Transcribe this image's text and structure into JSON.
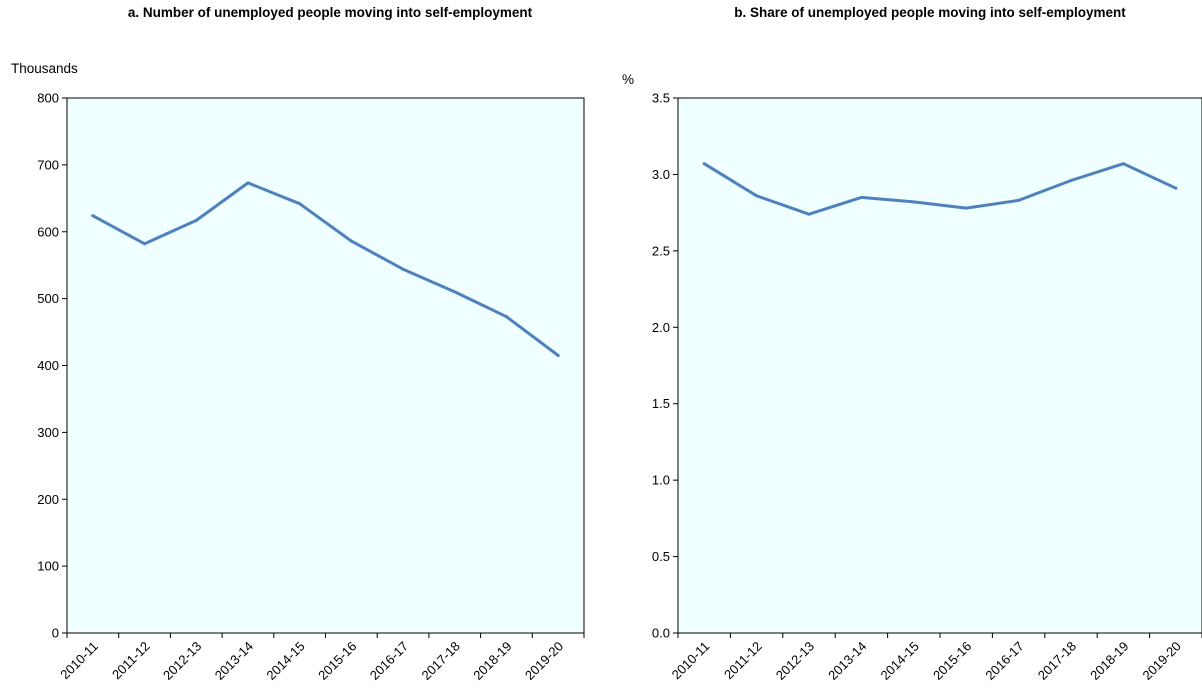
{
  "chart_data": [
    {
      "type": "line",
      "title": "a. Number of unemployed people moving into self-employment",
      "ylabel": "Thousands",
      "xlabel": "",
      "categories": [
        "2010-11",
        "2011-12",
        "2012-13",
        "2013-14",
        "2014-15",
        "2015-16",
        "2016-17",
        "2017-18",
        "2018-19",
        "2019-20"
      ],
      "series": [
        {
          "values": [
            624,
            582,
            617,
            673,
            642,
            586,
            544,
            510,
            473,
            415
          ]
        }
      ],
      "ylim": [
        0,
        800
      ],
      "yticks": [
        "0",
        "100",
        "200",
        "300",
        "400",
        "500",
        "600",
        "700",
        "800"
      ],
      "ytick_values": [
        0,
        100,
        200,
        300,
        400,
        500,
        600,
        700,
        800
      ],
      "grid": false,
      "colors": {
        "line": "#4f81bd",
        "plot_background": "#f0ffff"
      }
    },
    {
      "type": "line",
      "title": "b. Share of unemployed people moving into self-employment",
      "ylabel": "%",
      "xlabel": "",
      "categories": [
        "2010-11",
        "2011-12",
        "2012-13",
        "2013-14",
        "2014-15",
        "2015-16",
        "2016-17",
        "2017-18",
        "2018-19",
        "2019-20"
      ],
      "series": [
        {
          "values": [
            3.07,
            2.86,
            2.74,
            2.85,
            2.82,
            2.78,
            2.83,
            2.96,
            3.07,
            2.91
          ]
        }
      ],
      "ylim": [
        0,
        3.5
      ],
      "yticks": [
        "0.0",
        "0.5",
        "1.0",
        "1.5",
        "2.0",
        "2.5",
        "3.0",
        "3.5"
      ],
      "ytick_values": [
        0,
        0.5,
        1.0,
        1.5,
        2.0,
        2.5,
        3.0,
        3.5
      ],
      "grid": false,
      "colors": {
        "line": "#4f81bd",
        "plot_background": "#f0ffff"
      }
    }
  ]
}
